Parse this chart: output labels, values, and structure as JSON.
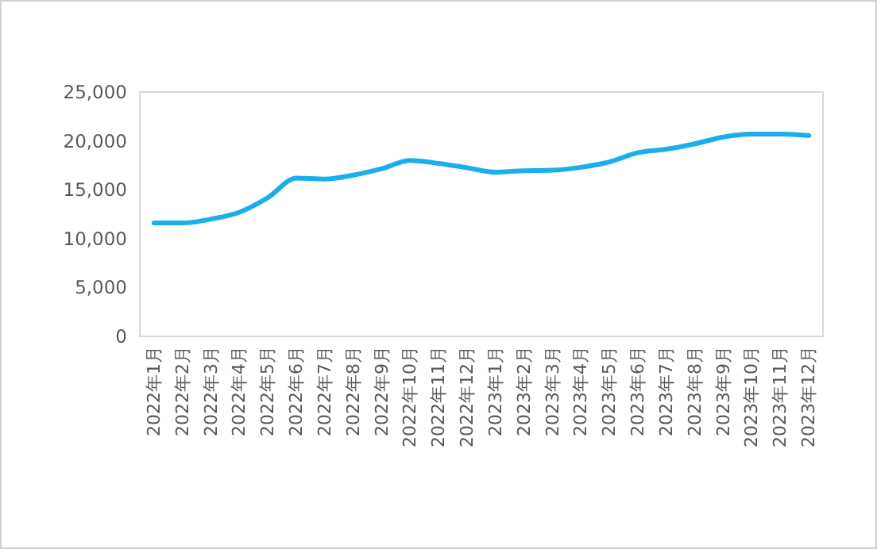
{
  "chart_data": {
    "type": "line",
    "categories": [
      "2022年1月",
      "2022年2月",
      "2022年3月",
      "2022年4月",
      "2022年5月",
      "2022年6月",
      "2022年7月",
      "2022年8月",
      "2022年9月",
      "2022年10月",
      "2022年11月",
      "2022年12月",
      "2023年1月",
      "2023年2月",
      "2023年3月",
      "2023年4月",
      "2023年5月",
      "2023年6月",
      "2023年7月",
      "2023年8月",
      "2023年9月",
      "2023年10月",
      "2023年11月",
      "2023年12月"
    ],
    "values": [
      11600,
      11600,
      12000,
      12700,
      14200,
      16200,
      16100,
      16500,
      17150,
      18000,
      17700,
      17250,
      16800,
      16950,
      17000,
      17300,
      17850,
      18800,
      19150,
      19700,
      20400,
      20700,
      20700,
      20550
    ],
    "color": "#1aaeea",
    "ylim": [
      0,
      25000
    ],
    "yticks": [
      0,
      {
        "value": 5000,
        "label": "5,000"
      },
      {
        "value": 10000,
        "label": "10,000"
      },
      {
        "value": 15000,
        "label": "15,000"
      },
      {
        "value": 20000,
        "label": "20,000"
      },
      {
        "value": 25000,
        "label": "25,000"
      }
    ],
    "marker": "none"
  }
}
